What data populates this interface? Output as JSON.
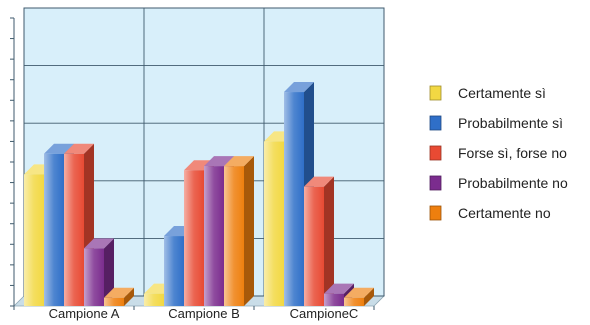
{
  "chart_data": {
    "type": "bar",
    "categories": [
      "Campione A",
      "Campione B",
      "CampioneC"
    ],
    "series": [
      {
        "name": "Certamente sì",
        "values": [
          3.2,
          0.3,
          4.0
        ],
        "color": "#f2d843"
      },
      {
        "name": "Probabilmente sì",
        "values": [
          3.7,
          1.7,
          5.2
        ],
        "color": "#2f6fc8"
      },
      {
        "name": "Forse sì, forse no",
        "values": [
          3.7,
          3.3,
          2.9
        ],
        "color": "#e84a33"
      },
      {
        "name": "Probabilmente no",
        "values": [
          1.4,
          3.4,
          0.3
        ],
        "color": "#7b2c8e"
      },
      {
        "name": "Certamente no",
        "values": [
          0.2,
          3.4,
          0.2
        ],
        "color": "#ee7f0e"
      }
    ],
    "ylim": [
      0,
      7
    ],
    "grid": true,
    "legend_position": "right",
    "plot_background": "#d8effa"
  }
}
